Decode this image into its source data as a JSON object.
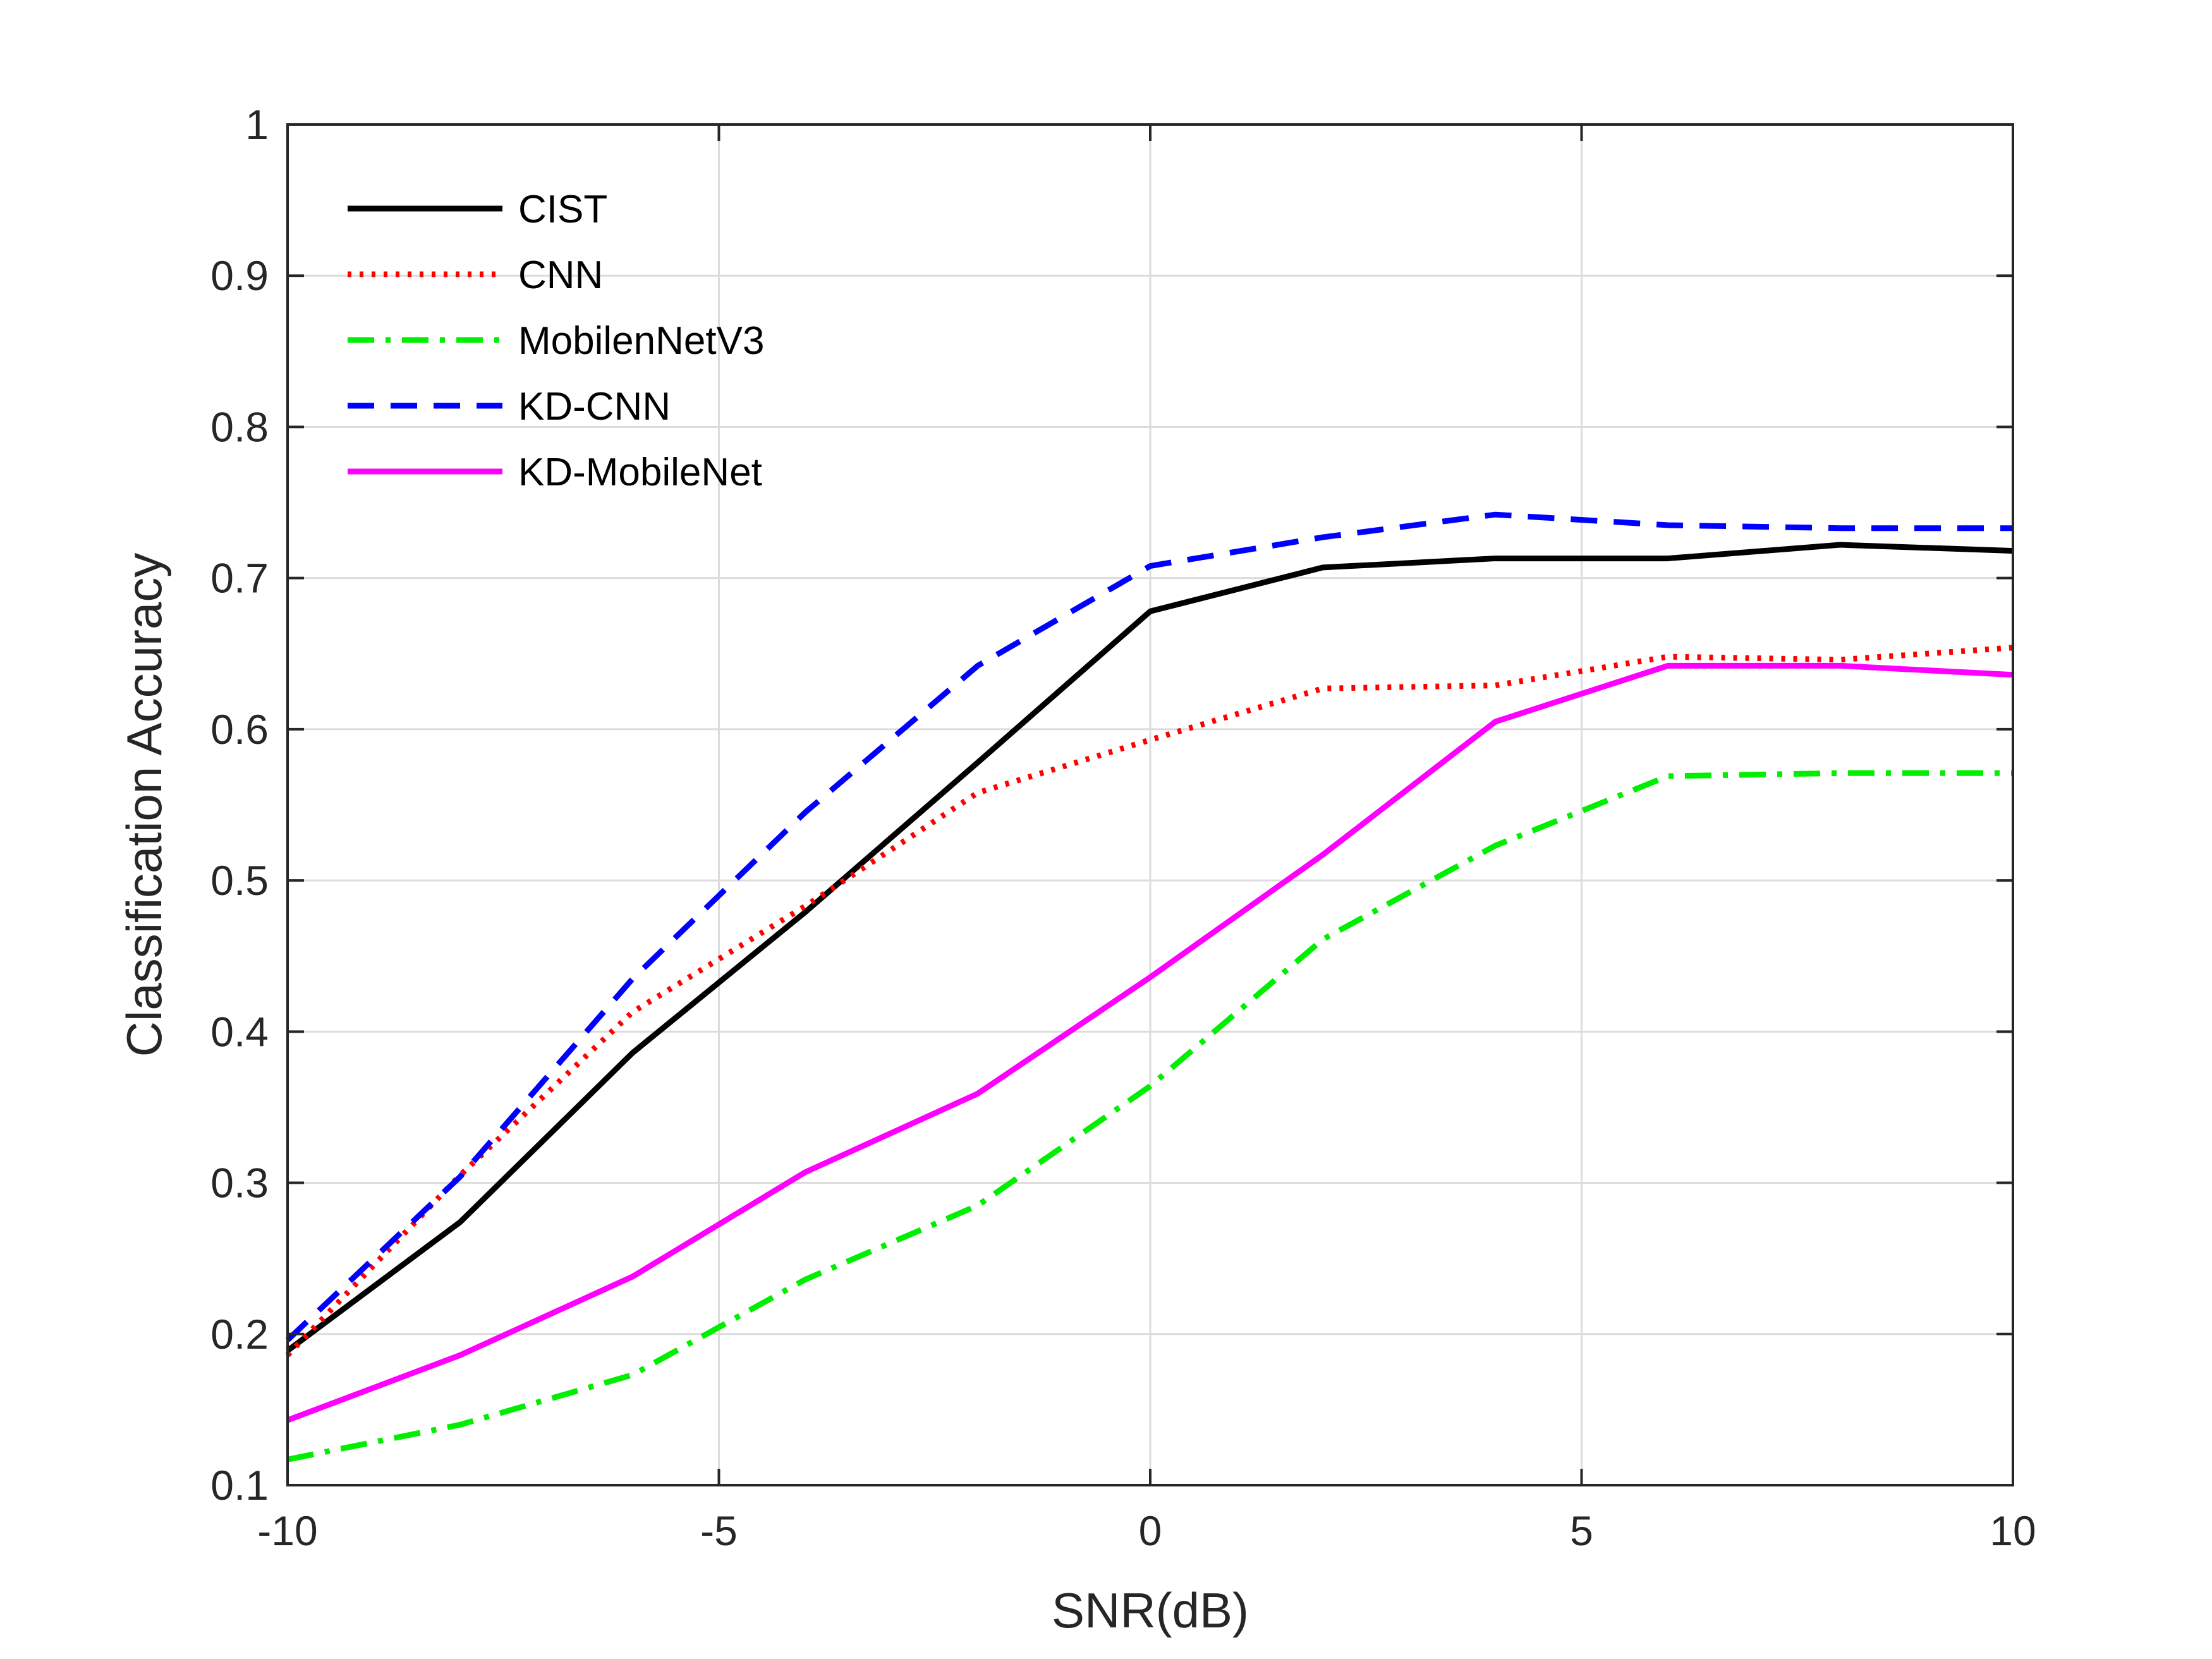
{
  "chart_data": {
    "type": "line",
    "title": "",
    "xlabel": "SNR(dB)",
    "ylabel": "Classification Accuracy",
    "xlim": [
      -10,
      10
    ],
    "ylim": [
      0.1,
      1
    ],
    "xticks": [
      -10,
      -5,
      0,
      5,
      10
    ],
    "xtick_labels": [
      "-10",
      "-5",
      "0",
      "5",
      "10"
    ],
    "yticks": [
      0.1,
      0.2,
      0.3,
      0.4,
      0.5,
      0.6,
      0.7,
      0.8,
      0.9,
      1
    ],
    "ytick_labels": [
      "0.1",
      "0.2",
      "0.3",
      "0.4",
      "0.5",
      "0.6",
      "0.7",
      "0.8",
      "0.9",
      "1"
    ],
    "grid": true,
    "legend_position": "top-left",
    "x": [
      -10,
      -8,
      -6,
      -4,
      -2,
      0,
      2,
      4,
      6,
      8,
      10
    ],
    "series": [
      {
        "name": "CIST",
        "color": "#000000",
        "style": "solid",
        "values": [
          0.189,
          0.274,
          0.386,
          0.479,
          0.578,
          0.678,
          0.707,
          0.713,
          0.713,
          0.722,
          0.718
        ]
      },
      {
        "name": "CNN",
        "color": "#ff0000",
        "style": "dotted",
        "values": [
          0.186,
          0.305,
          0.413,
          0.483,
          0.558,
          0.593,
          0.627,
          0.629,
          0.648,
          0.646,
          0.654
        ]
      },
      {
        "name": "MobilenNetV3",
        "color": "#00ee00",
        "style": "dashdot",
        "values": [
          0.117,
          0.14,
          0.173,
          0.236,
          0.285,
          0.364,
          0.461,
          0.523,
          0.569,
          0.571,
          0.571
        ]
      },
      {
        "name": "KD-CNN",
        "color": "#0000ff",
        "style": "dashed",
        "values": [
          0.196,
          0.304,
          0.435,
          0.545,
          0.642,
          0.708,
          0.727,
          0.742,
          0.735,
          0.733,
          0.733
        ]
      },
      {
        "name": "KD-MobileNet",
        "color": "#ff00ff",
        "style": "solid",
        "values": [
          0.143,
          0.186,
          0.238,
          0.307,
          0.359,
          0.436,
          0.517,
          0.605,
          0.642,
          0.642,
          0.636
        ]
      }
    ]
  }
}
